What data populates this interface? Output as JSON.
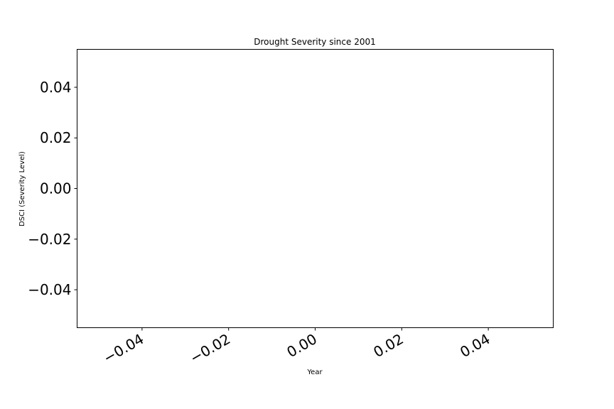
{
  "chart_data": {
    "type": "line",
    "title": "Drought Severity since 2001",
    "xlabel": "Year",
    "ylabel": "DSCI (Severity Level)",
    "xlim": [
      -0.055,
      0.055
    ],
    "ylim": [
      -0.055,
      0.055
    ],
    "x_ticks": [
      -0.04,
      -0.02,
      0.0,
      0.02,
      0.04
    ],
    "x_tick_labels": [
      "−0.04",
      "−0.02",
      "0.00",
      "0.02",
      "0.04"
    ],
    "y_ticks": [
      0.04,
      0.02,
      0.0,
      -0.02,
      -0.04
    ],
    "y_tick_labels": [
      "0.04",
      "0.02",
      "0.00",
      "−0.02",
      "−0.04"
    ],
    "grid": false,
    "series": []
  }
}
